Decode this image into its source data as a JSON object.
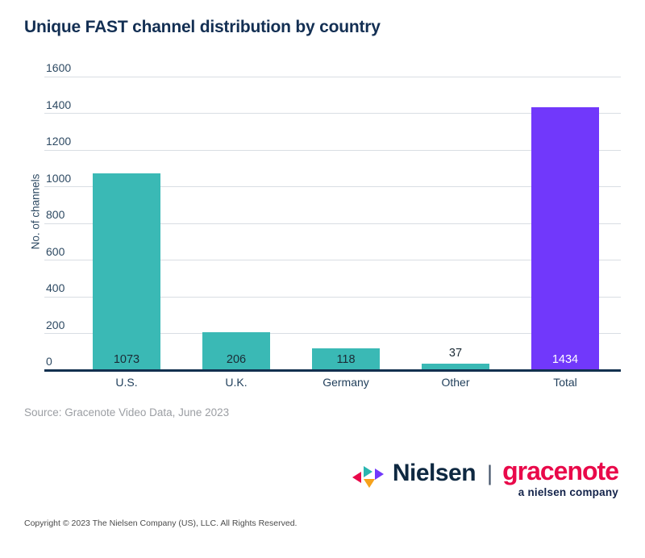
{
  "chart_data": {
    "type": "bar",
    "title": "Unique FAST channel distribution by country",
    "categories": [
      "U.S.",
      "U.K.",
      "Germany",
      "Other",
      "Total"
    ],
    "values": [
      1073,
      206,
      118,
      37,
      1434
    ],
    "value_labels": [
      "1073",
      "206",
      "118",
      "37",
      "1434"
    ],
    "value_label_placement": [
      "inside",
      "inside",
      "inside",
      "above",
      "inside"
    ],
    "value_label_colors": [
      "#1c2b36",
      "#1c2b36",
      "#1c2b36",
      "#1c2b36",
      "#ffffff"
    ],
    "bar_colors": [
      "#3ab9b5",
      "#3ab9b5",
      "#3ab9b5",
      "#3ab9b5",
      "#7138fb"
    ],
    "xlabel": "",
    "ylabel": "No. of channels",
    "ylim": [
      0,
      1600
    ],
    "yticks": [
      0,
      200,
      400,
      600,
      800,
      1000,
      1200,
      1400,
      1600
    ],
    "grid": true,
    "legend": false
  },
  "source": {
    "text": "Source: Gracenote Video Data, June 2023"
  },
  "logo": {
    "nielsen": "Nielsen",
    "separator": "|",
    "gracenote": "gracenote",
    "tagline": "a nielsen company",
    "mark_colors": {
      "red": "#e9094a",
      "teal": "#29b5b0",
      "orange": "#f6a21b",
      "purple": "#7138fb"
    }
  },
  "footer": {
    "copyright": "Copyright © 2023 The Nielsen Company (US), LLC. All Rights Reserved."
  }
}
